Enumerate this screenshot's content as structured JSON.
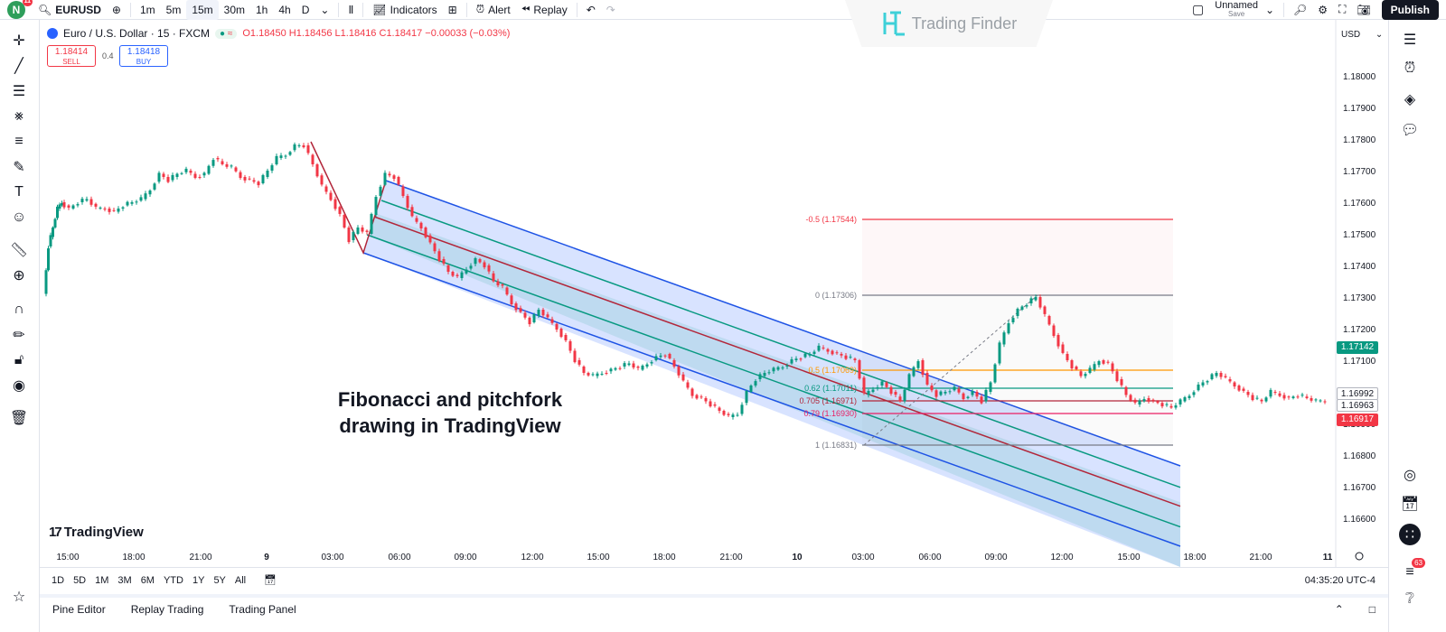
{
  "topbar": {
    "avatar_letter": "N",
    "avatar_badge": "11",
    "symbol": "EURUSD",
    "intervals": [
      "1m",
      "5m",
      "15m",
      "30m",
      "1h",
      "4h",
      "D"
    ],
    "active_interval": "15m",
    "indicators_label": "Indicators",
    "alert_label": "Alert",
    "replay_label": "Replay",
    "layout_name": "Unnamed",
    "layout_sub": "Save",
    "publish_label": "Publish"
  },
  "watermark": {
    "text": "Trading Finder"
  },
  "legend": {
    "title": "Euro / U.S. Dollar · 15 · FXCM",
    "open": "O1.18450",
    "high": "H1.18456",
    "low": "L1.18416",
    "close": "C1.18417",
    "change": "−0.00033 (−0.03%)"
  },
  "trade": {
    "sell_price": "1.18414",
    "sell_label": "SELL",
    "spread": "0.4",
    "buy_price": "1.18418",
    "buy_label": "BUY"
  },
  "price_axis": {
    "currency": "USD",
    "ticks": [
      "1.18000",
      "1.17900",
      "1.17800",
      "1.17700",
      "1.17600",
      "1.17500",
      "1.17400",
      "1.17300",
      "1.17200",
      "1.17100",
      "1.16900",
      "1.16800",
      "1.16700",
      "1.16600"
    ],
    "tags": [
      {
        "value": "1.17142",
        "color": "#089981"
      },
      {
        "value": "1.16992",
        "color": "#ffffff"
      },
      {
        "value": "1.16963",
        "color": "#ffffff"
      },
      {
        "value": "1.16917",
        "color": "#f23645"
      }
    ]
  },
  "time_axis": [
    "15:00",
    "18:00",
    "21:00",
    "9",
    "03:00",
    "06:00",
    "09:00",
    "12:00",
    "15:00",
    "18:00",
    "21:00",
    "10",
    "03:00",
    "06:00",
    "09:00",
    "12:00",
    "15:00",
    "18:00",
    "21:00",
    "11"
  ],
  "fib_levels": [
    {
      "label": "-0.5 (1.17544)",
      "color": "#f23645"
    },
    {
      "label": "0 (1.17306)",
      "color": "#787b86"
    },
    {
      "label": "0.5 (1.17069)",
      "color": "#ff9800"
    },
    {
      "label": "0.62 (1.17011)",
      "color": "#089981"
    },
    {
      "label": "0.705 (1.16971)",
      "color": "#b2263a"
    },
    {
      "label": "0.79 (1.16930)",
      "color": "#e91e63"
    },
    {
      "label": "1 (1.16831)",
      "color": "#787b86"
    }
  ],
  "caption": {
    "line1": "Fibonacci and pitchfork",
    "line2": "drawing in TradingView"
  },
  "logo_text": "TradingView",
  "ranges": [
    "1D",
    "5D",
    "1M",
    "3M",
    "6M",
    "YTD",
    "1Y",
    "5Y",
    "All"
  ],
  "clock": "04:35:20 UTC-4",
  "panels": [
    "Pine Editor",
    "Replay Trading",
    "Trading Panel"
  ],
  "notification_count": "63",
  "colors": {
    "up": "#089981",
    "down": "#f23645",
    "channel_blue": "#1e53e5",
    "channel_green": "#089981",
    "median_red": "#b2263a"
  }
}
